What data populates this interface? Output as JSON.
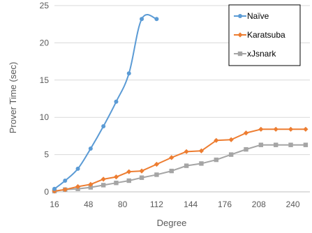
{
  "chart_data": {
    "type": "line",
    "title": "",
    "xlabel": "Degree",
    "ylabel": "Prover Time (sec)",
    "xlim": [
      16,
      256
    ],
    "ylim": [
      0,
      25
    ],
    "x_ticks": [
      16,
      48,
      80,
      112,
      144,
      176,
      208,
      240
    ],
    "y_ticks": [
      0,
      5,
      10,
      15,
      20,
      25
    ],
    "grid": true,
    "legend_position": "top-right",
    "series": [
      {
        "name": "Naïve",
        "color": "#5B9BD5",
        "marker": "circle",
        "smooth": true,
        "x": [
          16,
          26,
          38,
          50,
          62,
          74,
          86,
          98,
          112
        ],
        "y": [
          0.4,
          1.5,
          3.1,
          5.8,
          8.8,
          12.1,
          15.9,
          23.2,
          23.2
        ]
      },
      {
        "name": "Karatsuba",
        "color": "#ED7D31",
        "marker": "diamond",
        "smooth": false,
        "x": [
          16,
          26,
          38,
          50,
          62,
          74,
          86,
          98,
          112,
          126,
          140,
          154,
          168,
          182,
          196,
          210,
          224,
          238,
          252
        ],
        "y": [
          0.1,
          0.3,
          0.7,
          1.0,
          1.7,
          2.0,
          2.7,
          2.8,
          3.7,
          4.6,
          5.4,
          5.5,
          6.9,
          7.0,
          7.9,
          8.4,
          8.4,
          8.4,
          8.4
        ]
      },
      {
        "name": "xJsnark",
        "color": "#A5A5A5",
        "marker": "square",
        "smooth": false,
        "x": [
          16,
          26,
          38,
          50,
          62,
          74,
          86,
          98,
          112,
          126,
          140,
          154,
          168,
          182,
          196,
          210,
          224,
          238,
          252
        ],
        "y": [
          0.1,
          0.3,
          0.4,
          0.6,
          0.9,
          1.2,
          1.5,
          1.9,
          2.3,
          2.8,
          3.5,
          3.8,
          4.3,
          5.0,
          5.7,
          6.3,
          6.3,
          6.3,
          6.3
        ]
      }
    ]
  }
}
